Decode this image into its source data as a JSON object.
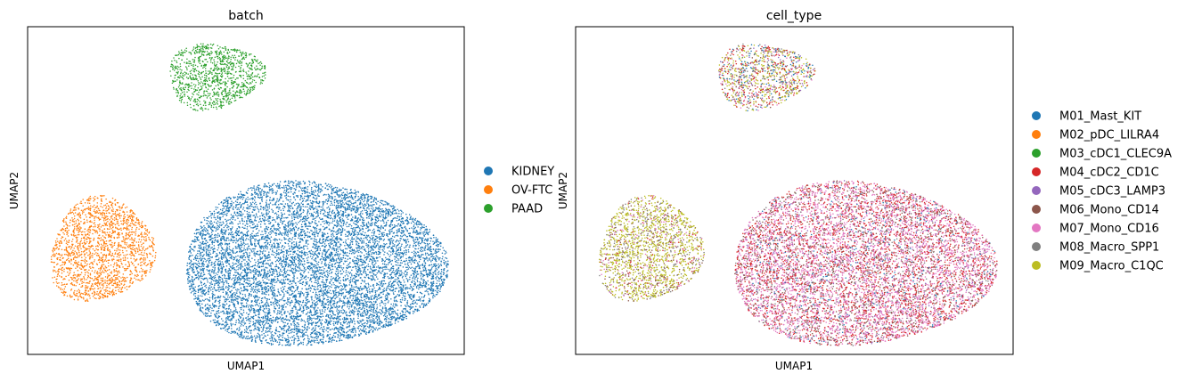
{
  "chart_data": [
    {
      "type": "scatter",
      "title": "batch",
      "xlabel": "UMAP1",
      "ylabel": "UMAP2",
      "grid": false,
      "legend_position": "right",
      "legend": [
        {
          "label": "KIDNEY",
          "color": "#1f77b4"
        },
        {
          "label": "OV-FTC",
          "color": "#ff7f0e"
        },
        {
          "label": "PAAD",
          "color": "#2ca02c"
        }
      ],
      "clusters": [
        {
          "series": "PAAD",
          "label_mix": [
            {
              "color": "#2ca02c",
              "weight": 1
            }
          ],
          "count": 1100
        },
        {
          "series": "OV-FTC",
          "label_mix": [
            {
              "color": "#ff7f0e",
              "weight": 1
            }
          ],
          "count": 1900
        },
        {
          "series": "KIDNEY",
          "label_mix": [
            {
              "color": "#1f77b4",
              "weight": 1
            }
          ],
          "count": 9000
        }
      ]
    },
    {
      "type": "scatter",
      "title": "cell_type",
      "xlabel": "UMAP1",
      "ylabel": "UMAP2",
      "grid": false,
      "legend_position": "right",
      "legend": [
        {
          "label": "M01_Mast_KIT",
          "color": "#1f77b4"
        },
        {
          "label": "M02_pDC_LILRA4",
          "color": "#ff7f0e"
        },
        {
          "label": "M03_cDC1_CLEC9A",
          "color": "#2ca02c"
        },
        {
          "label": "M04_cDC2_CD1C",
          "color": "#d62728"
        },
        {
          "label": "M05_cDC3_LAMP3",
          "color": "#9467bd"
        },
        {
          "label": "M06_Mono_CD14",
          "color": "#8c564b"
        },
        {
          "label": "M07_Mono_CD16",
          "color": "#e377c2"
        },
        {
          "label": "M08_Macro_SPP1",
          "color": "#7f7f7f"
        },
        {
          "label": "M09_Macro_C1QC",
          "color": "#bcbd22"
        }
      ],
      "clusters": [
        {
          "series": "PAAD",
          "count": 1100,
          "label_mix": [
            {
              "color": "#bcbd22",
              "weight": 0.35
            },
            {
              "color": "#d62728",
              "weight": 0.2
            },
            {
              "color": "#1f77b4",
              "weight": 0.15
            },
            {
              "color": "#7f7f7f",
              "weight": 0.1
            },
            {
              "color": "#8c564b",
              "weight": 0.08
            },
            {
              "color": "#e377c2",
              "weight": 0.06
            },
            {
              "color": "#9467bd",
              "weight": 0.06
            }
          ]
        },
        {
          "series": "OV-FTC",
          "count": 1900,
          "label_mix": [
            {
              "color": "#bcbd22",
              "weight": 0.6
            },
            {
              "color": "#7f7f7f",
              "weight": 0.15
            },
            {
              "color": "#8c564b",
              "weight": 0.12
            },
            {
              "color": "#e377c2",
              "weight": 0.08
            },
            {
              "color": "#d62728",
              "weight": 0.05
            }
          ]
        },
        {
          "series": "KIDNEY",
          "count": 9000,
          "label_mix": [
            {
              "color": "#e377c2",
              "weight": 0.42
            },
            {
              "color": "#d62728",
              "weight": 0.28
            },
            {
              "color": "#8c564b",
              "weight": 0.15
            },
            {
              "color": "#7f7f7f",
              "weight": 0.07
            },
            {
              "color": "#9467bd",
              "weight": 0.04
            },
            {
              "color": "#1f77b4",
              "weight": 0.04
            }
          ]
        }
      ]
    }
  ]
}
